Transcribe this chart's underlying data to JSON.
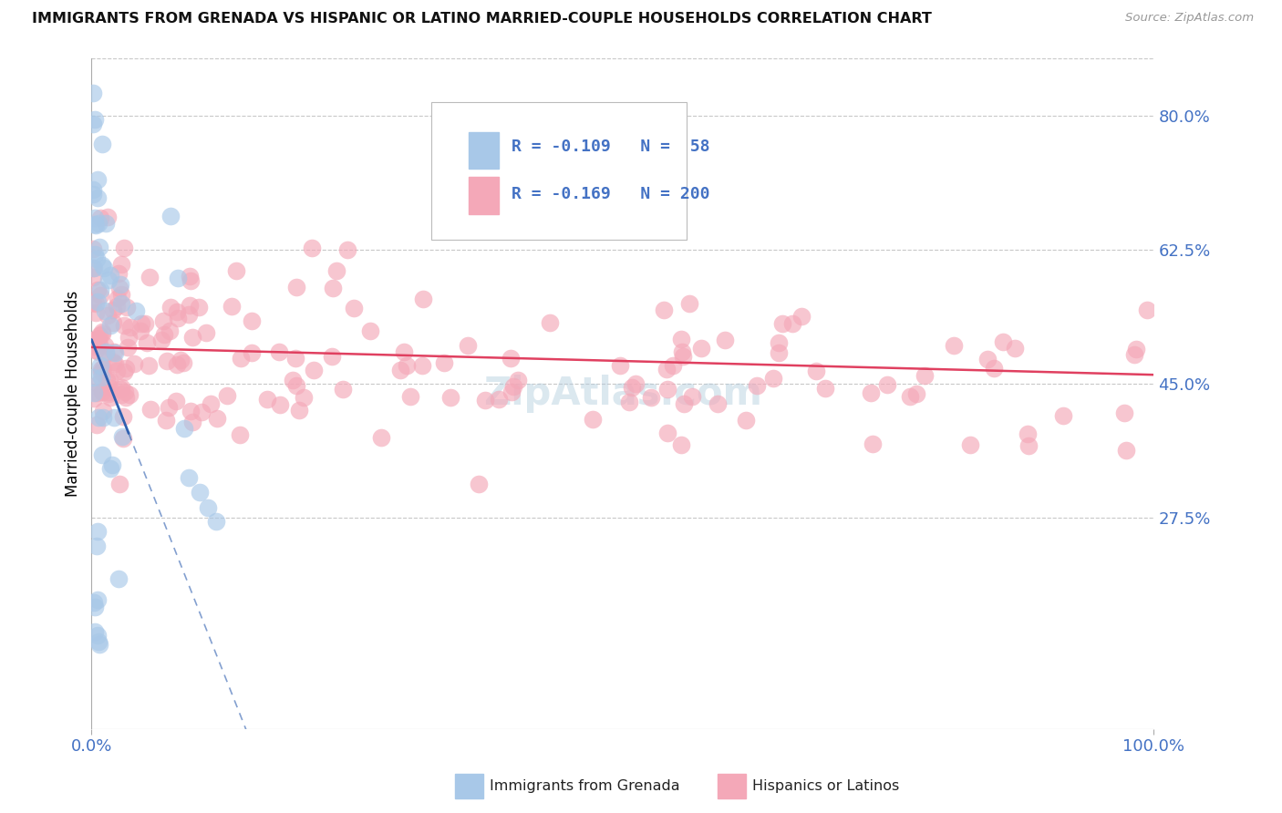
{
  "title": "IMMIGRANTS FROM GRENADA VS HISPANIC OR LATINO MARRIED-COUPLE HOUSEHOLDS CORRELATION CHART",
  "source": "Source: ZipAtlas.com",
  "ylabel": "Married-couple Households",
  "xlim": [
    0,
    1.0
  ],
  "ylim": [
    0,
    0.875
  ],
  "yticks": [
    0.275,
    0.45,
    0.625,
    0.8
  ],
  "ytick_labels": [
    "27.5%",
    "45.0%",
    "62.5%",
    "80.0%"
  ],
  "R_blue": -0.109,
  "N_blue": 58,
  "R_pink": -0.169,
  "N_pink": 200,
  "blue_color": "#A8C8E8",
  "pink_color": "#F4A8B8",
  "blue_edge_color": "#7AAAD0",
  "pink_edge_color": "#E87898",
  "blue_line_color": "#3060B0",
  "pink_line_color": "#E04060",
  "background_color": "#FFFFFF",
  "text_color": "#4472C4",
  "grid_color": "#C8C8C8",
  "watermark": "ZipAtlas.com",
  "watermark_color": "#B0CCDD"
}
